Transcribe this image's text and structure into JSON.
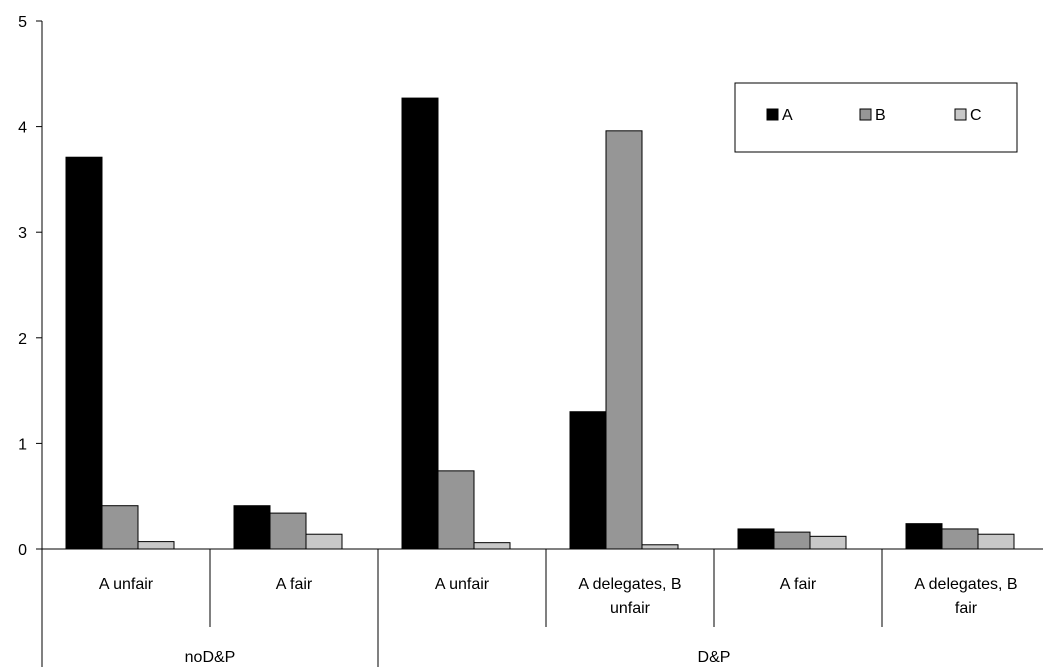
{
  "chart_data": {
    "type": "bar",
    "title": "",
    "xlabel": "",
    "ylabel": "",
    "ylim": [
      0,
      5
    ],
    "yticks": [
      "0",
      "1",
      "2",
      "3",
      "4",
      "5"
    ],
    "grid": false,
    "legend_position": "top-right",
    "groups": [
      {
        "label": "noD&P",
        "categories": 2
      },
      {
        "label": "D&P",
        "categories": 4
      }
    ],
    "categories": [
      [
        "A unfair"
      ],
      [
        "A fair"
      ],
      [
        "A unfair"
      ],
      [
        "A delegates, B",
        "unfair"
      ],
      [
        "A fair"
      ],
      [
        "A delegates, B",
        "fair"
      ]
    ],
    "series": [
      {
        "name": "A",
        "color": "#000000",
        "values": [
          3.71,
          0.41,
          4.27,
          1.3,
          0.19,
          0.24
        ]
      },
      {
        "name": "B",
        "color": "#969696",
        "values": [
          0.41,
          0.34,
          0.74,
          3.96,
          0.16,
          0.19
        ]
      },
      {
        "name": "C",
        "color": "#c8c8c8",
        "values": [
          0.07,
          0.14,
          0.06,
          0.04,
          0.12,
          0.14
        ]
      }
    ]
  }
}
